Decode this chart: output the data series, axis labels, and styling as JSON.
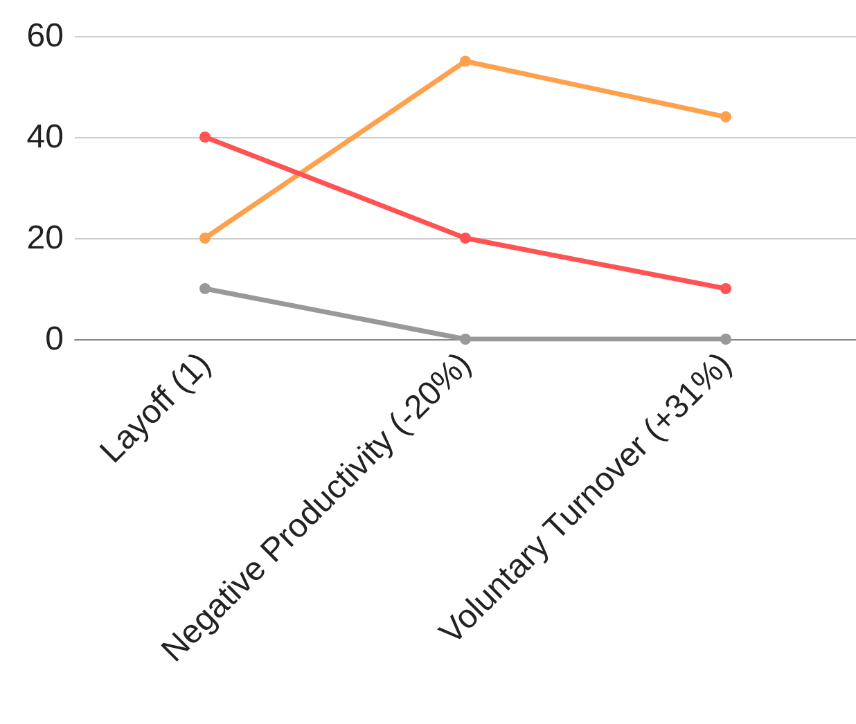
{
  "chart_data": {
    "type": "line",
    "categories": [
      "Layoff (1)",
      "Negative Productivity (-20%)",
      "Voluntary Turnover (+31%)"
    ],
    "series": [
      {
        "color": "#ffa04d",
        "values": [
          20,
          55,
          44
        ]
      },
      {
        "color": "#ff5252",
        "values": [
          40,
          20,
          10
        ]
      },
      {
        "color": "#999999",
        "values": [
          10,
          0,
          0
        ]
      }
    ],
    "ylim": [
      0,
      60
    ],
    "yticks": [
      0,
      20,
      40,
      60
    ],
    "grid": "y",
    "marker": "circle",
    "line_style": "solid"
  }
}
